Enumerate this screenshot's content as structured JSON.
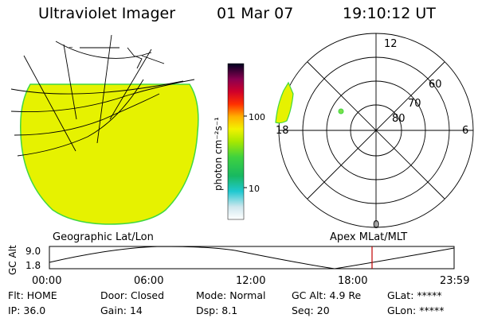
{
  "header": {
    "title": "Ultraviolet Imager",
    "date": "01 Mar 07",
    "time": "19:10:12 UT"
  },
  "map": {
    "projection_label": "Geographic Lat/Lon",
    "fill_color": "#e6f200"
  },
  "colorbar": {
    "unit_label": "photon cm⁻²s⁻¹",
    "ticks": [
      "100",
      "10"
    ]
  },
  "polar_plot": {
    "projection_label": "Apex MLat/MLT",
    "latitude_labels": [
      "60",
      "70",
      "80"
    ],
    "mlt_labels": [
      "12",
      "18",
      "6",
      "0"
    ]
  },
  "altitude_plot": {
    "ylabel": "GC Alt",
    "yticks": [
      "9.0",
      "1.8"
    ],
    "xticks": [
      "00:00",
      "06:00",
      "12:00",
      "18:00",
      "23:59"
    ],
    "current_time_marker": "19:10:12"
  },
  "status": {
    "row1": [
      {
        "key": "Flt:",
        "value": "HOME"
      },
      {
        "key": "Door:",
        "value": "Closed"
      },
      {
        "key": "Mode:",
        "value": "Normal"
      },
      {
        "key": "GC Alt:",
        "value": "4.9 Re"
      },
      {
        "key": "GLat:",
        "value": "*****"
      }
    ],
    "row2": [
      {
        "key": "IP:",
        "value": "36.0"
      },
      {
        "key": "Gain:",
        "value": "14"
      },
      {
        "key": "Dsp:",
        "value": "8.1"
      },
      {
        "key": "Seq:",
        "value": "20"
      },
      {
        "key": "GLon:",
        "value": "*****"
      }
    ]
  }
}
